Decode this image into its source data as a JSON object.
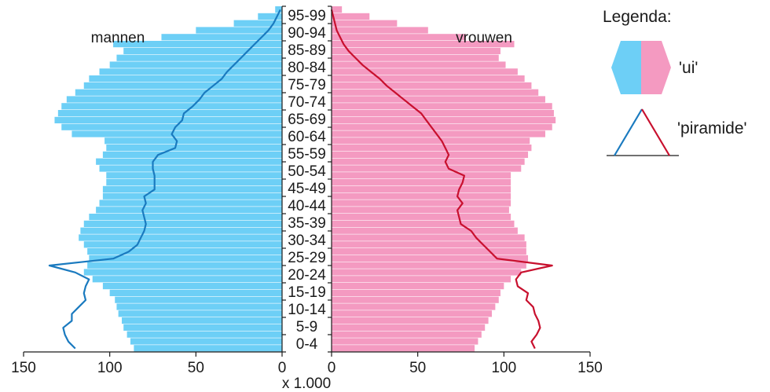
{
  "chart_data": {
    "type": "bar",
    "subtype": "population-pyramid",
    "x_unit_label": "x 1.000",
    "x_ticks_left": [
      "150",
      "100",
      "50",
      "0"
    ],
    "x_ticks_right": [
      "0",
      "50",
      "100",
      "150"
    ],
    "xlim": [
      0,
      150
    ],
    "group_labels": {
      "male": "mannen",
      "female": "vrouwen"
    },
    "age_groups": [
      "0-4",
      "5-9",
      "10-14",
      "15-19",
      "20-24",
      "25-29",
      "30-34",
      "35-39",
      "40-44",
      "45-49",
      "50-54",
      "55-59",
      "60-64",
      "65-69",
      "70-74",
      "75-79",
      "80-84",
      "85-89",
      "90-94",
      "95-99"
    ],
    "series": [
      {
        "name": "mannen 'ui'",
        "style": "bars",
        "color": "#6dcff6",
        "ages": [
          0,
          2,
          4,
          6,
          8,
          10,
          12,
          14,
          16,
          18,
          20,
          22,
          24,
          26,
          28,
          30,
          32,
          34,
          36,
          38,
          40,
          42,
          44,
          46,
          48,
          50,
          52,
          54,
          56,
          58,
          60,
          62,
          64,
          66,
          68,
          70,
          72,
          74,
          76,
          78,
          80,
          82,
          84,
          86,
          88,
          90,
          92,
          94,
          96,
          98
        ],
        "values": [
          86,
          88,
          90,
          92,
          93,
          95,
          96,
          97,
          100,
          104,
          110,
          115,
          113,
          112,
          113,
          115,
          118,
          117,
          115,
          112,
          108,
          106,
          104,
          104,
          102,
          102,
          106,
          108,
          104,
          102,
          103,
          122,
          128,
          132,
          130,
          128,
          125,
          120,
          115,
          112,
          106,
          100,
          96,
          92,
          98,
          70,
          50,
          28,
          14,
          4
        ]
      },
      {
        "name": "vrouwen 'ui'",
        "style": "bars",
        "color": "#f49ac1",
        "ages": [
          0,
          2,
          4,
          6,
          8,
          10,
          12,
          14,
          16,
          18,
          20,
          22,
          24,
          26,
          28,
          30,
          32,
          34,
          36,
          38,
          40,
          42,
          44,
          46,
          48,
          50,
          52,
          54,
          56,
          58,
          60,
          62,
          64,
          66,
          68,
          70,
          72,
          74,
          76,
          78,
          80,
          82,
          84,
          86,
          88,
          90,
          92,
          94,
          96,
          98
        ],
        "values": [
          83,
          85,
          87,
          89,
          91,
          93,
          95,
          97,
          98,
          100,
          104,
          110,
          113,
          114,
          113,
          113,
          112,
          108,
          106,
          104,
          103,
          104,
          104,
          104,
          104,
          104,
          110,
          112,
          114,
          116,
          115,
          124,
          128,
          130,
          129,
          128,
          124,
          120,
          116,
          112,
          108,
          101,
          97,
          98,
          106,
          78,
          56,
          38,
          22,
          6
        ]
      },
      {
        "name": "mannen 'piramide'",
        "style": "line",
        "color": "#1a7abf",
        "ages": [
          0,
          2,
          4,
          6,
          8,
          10,
          12,
          14,
          16,
          18,
          20,
          22,
          24,
          26,
          28,
          30,
          32,
          34,
          36,
          38,
          40,
          42,
          44,
          46,
          48,
          50,
          52,
          54,
          56,
          58,
          60,
          62,
          64,
          66,
          68,
          70,
          72,
          74,
          76,
          78,
          80,
          82,
          84,
          86,
          88,
          90,
          92,
          94,
          96,
          98
        ],
        "values": [
          120,
          124,
          126,
          127,
          122,
          122,
          118,
          114,
          115,
          114,
          112,
          120,
          135,
          98,
          89,
          84,
          82,
          80,
          79,
          80,
          81,
          79,
          80,
          74,
          74,
          74,
          75,
          75,
          72,
          62,
          61,
          64,
          62,
          58,
          57,
          52,
          48,
          45,
          40,
          35,
          32,
          28,
          24,
          20,
          16,
          12,
          8,
          5,
          3,
          1
        ]
      },
      {
        "name": "vrouwen 'piramide'",
        "style": "line",
        "color": "#c8102e",
        "ages": [
          0,
          2,
          4,
          6,
          8,
          10,
          12,
          14,
          16,
          18,
          20,
          22,
          24,
          26,
          28,
          30,
          32,
          34,
          36,
          38,
          40,
          42,
          44,
          46,
          48,
          50,
          52,
          54,
          56,
          58,
          60,
          62,
          64,
          66,
          68,
          70,
          72,
          74,
          76,
          78,
          80,
          82,
          84,
          86,
          88,
          90,
          92,
          94,
          96,
          98
        ],
        "values": [
          118,
          116,
          119,
          121,
          120,
          118,
          117,
          113,
          114,
          108,
          107,
          110,
          128,
          96,
          92,
          88,
          84,
          81,
          75,
          74,
          73,
          76,
          73,
          74,
          76,
          77,
          68,
          66,
          68,
          66,
          64,
          61,
          58,
          55,
          52,
          47,
          42,
          37,
          32,
          28,
          23,
          18,
          14,
          10,
          7,
          5,
          3,
          2,
          1,
          0
        ]
      }
    ]
  },
  "legend": {
    "title": "Legenda:",
    "items": [
      {
        "label": "'ui'",
        "shape": "hexagon",
        "colors": [
          "#6dcff6",
          "#f49ac1"
        ]
      },
      {
        "label": "'piramide'",
        "shape": "triangle",
        "colors": [
          "#1a7abf",
          "#c8102e"
        ]
      }
    ]
  }
}
